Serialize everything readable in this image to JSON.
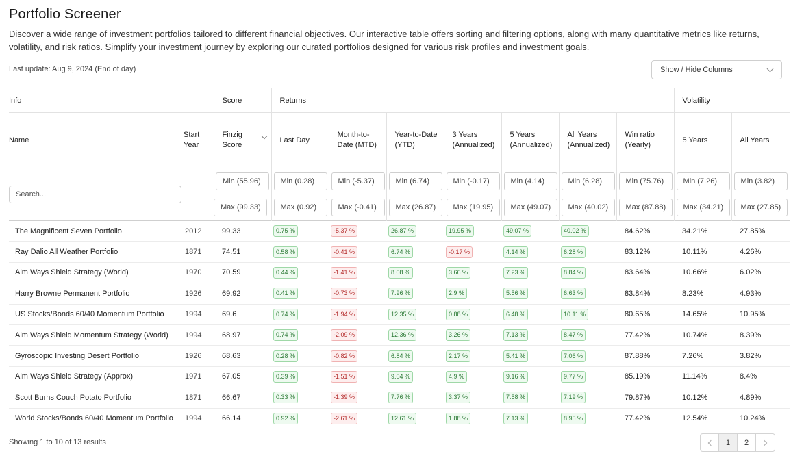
{
  "header": {
    "title": "Portfolio Screener",
    "description": "Discover a wide range of investment portfolios tailored to different financial objectives. Our interactive table offers sorting and filtering options, along with many quantitative metrics like returns, volatility, and risk ratios. Simplify your investment journey by exploring our curated portfolios designed for various risk profiles and investment goals.",
    "last_update": "Last update: Aug 9, 2024 (End of day)",
    "column_toggle": "Show / Hide Columns"
  },
  "table": {
    "groups": [
      "Info",
      "Score",
      "Returns",
      "Volatility"
    ],
    "columns": [
      "Name",
      "Start Year",
      "Finzig Score",
      "Last Day",
      "Month-to-Date (MTD)",
      "Year-to-Date (YTD)",
      "3 Years (Annualized)",
      "5 Years (Annualized)",
      "All Years (Annualized)",
      "Win ratio (Yearly)",
      "5 Years",
      "All Years"
    ],
    "search_placeholder": "Search...",
    "filters_min": [
      "Min (55.96)",
      "Min (0.28)",
      "Min (-5.37)",
      "Min (6.74)",
      "Min (-0.17)",
      "Min (4.14)",
      "Min (6.28)",
      "Min (75.76)",
      "Min (7.26)",
      "Min (3.82)"
    ],
    "filters_max": [
      "Max (99.33)",
      "Max (0.92)",
      "Max (-0.41)",
      "Max (26.87)",
      "Max (19.95)",
      "Max (49.07)",
      "Max (40.02)",
      "Max (87.88)",
      "Max (34.21)",
      "Max (27.85)"
    ],
    "rows": [
      {
        "name": "The Magnificent Seven Portfolio",
        "year": "2012",
        "score": "99.33",
        "last_day": "0.75 %",
        "mtd": "-5.37 %",
        "ytd": "26.87 %",
        "y3": "19.95 %",
        "y5": "49.07 %",
        "all": "40.02 %",
        "win": "84.62%",
        "vol5": "34.21%",
        "volall": "27.85%"
      },
      {
        "name": "Ray Dalio All Weather Portfolio",
        "year": "1871",
        "score": "74.51",
        "last_day": "0.58 %",
        "mtd": "-0.41 %",
        "ytd": "6.74 %",
        "y3": "-0.17 %",
        "y5": "4.14 %",
        "all": "6.28 %",
        "win": "83.12%",
        "vol5": "10.11%",
        "volall": "4.26%"
      },
      {
        "name": "Aim Ways Shield Strategy (World)",
        "year": "1970",
        "score": "70.59",
        "last_day": "0.44 %",
        "mtd": "-1.41 %",
        "ytd": "8.08 %",
        "y3": "3.66 %",
        "y5": "7.23 %",
        "all": "8.84 %",
        "win": "83.64%",
        "vol5": "10.66%",
        "volall": "6.02%"
      },
      {
        "name": "Harry Browne Permanent Portfolio",
        "year": "1926",
        "score": "69.92",
        "last_day": "0.41 %",
        "mtd": "-0.73 %",
        "ytd": "7.96 %",
        "y3": "2.9 %",
        "y5": "5.56 %",
        "all": "6.63 %",
        "win": "83.84%",
        "vol5": "8.23%",
        "volall": "4.93%"
      },
      {
        "name": "US Stocks/Bonds 60/40 Momentum Portfolio",
        "year": "1994",
        "score": "69.6",
        "last_day": "0.74 %",
        "mtd": "-1.94 %",
        "ytd": "12.35 %",
        "y3": "0.88 %",
        "y5": "6.48 %",
        "all": "10.11 %",
        "win": "80.65%",
        "vol5": "14.65%",
        "volall": "10.95%"
      },
      {
        "name": "Aim Ways Shield Momentum Strategy (World)",
        "year": "1994",
        "score": "68.97",
        "last_day": "0.74 %",
        "mtd": "-2.09 %",
        "ytd": "12.36 %",
        "y3": "3.26 %",
        "y5": "7.13 %",
        "all": "8.47 %",
        "win": "77.42%",
        "vol5": "10.74%",
        "volall": "8.39%"
      },
      {
        "name": "Gyroscopic Investing Desert Portfolio",
        "year": "1926",
        "score": "68.63",
        "last_day": "0.28 %",
        "mtd": "-0.82 %",
        "ytd": "6.84 %",
        "y3": "2.17 %",
        "y5": "5.41 %",
        "all": "7.06 %",
        "win": "87.88%",
        "vol5": "7.26%",
        "volall": "3.82%"
      },
      {
        "name": "Aim Ways Shield Strategy (Approx)",
        "year": "1971",
        "score": "67.05",
        "last_day": "0.39 %",
        "mtd": "-1.51 %",
        "ytd": "9.04 %",
        "y3": "4.9 %",
        "y5": "9.16 %",
        "all": "9.77 %",
        "win": "85.19%",
        "vol5": "11.14%",
        "volall": "8.4%"
      },
      {
        "name": "Scott Burns Couch Potato Portfolio",
        "year": "1871",
        "score": "66.67",
        "last_day": "0.33 %",
        "mtd": "-1.39 %",
        "ytd": "7.76 %",
        "y3": "3.37 %",
        "y5": "7.58 %",
        "all": "7.19 %",
        "win": "79.87%",
        "vol5": "10.12%",
        "volall": "4.89%"
      },
      {
        "name": "World Stocks/Bonds 60/40 Momentum Portfolio",
        "year": "1994",
        "score": "66.14",
        "last_day": "0.92 %",
        "mtd": "-2.61 %",
        "ytd": "12.61 %",
        "y3": "1.88 %",
        "y5": "7.13 %",
        "all": "8.95 %",
        "win": "77.42%",
        "vol5": "12.54%",
        "volall": "10.24%"
      }
    ]
  },
  "footer": {
    "showing": "Showing 1 to 10 of 13 results",
    "pages": [
      "1",
      "2"
    ]
  },
  "colors": {
    "positive_text": "#2c7a36",
    "positive_bg": "#eefaf0",
    "negative_text": "#b32b2b",
    "negative_bg": "#fdeeee"
  }
}
